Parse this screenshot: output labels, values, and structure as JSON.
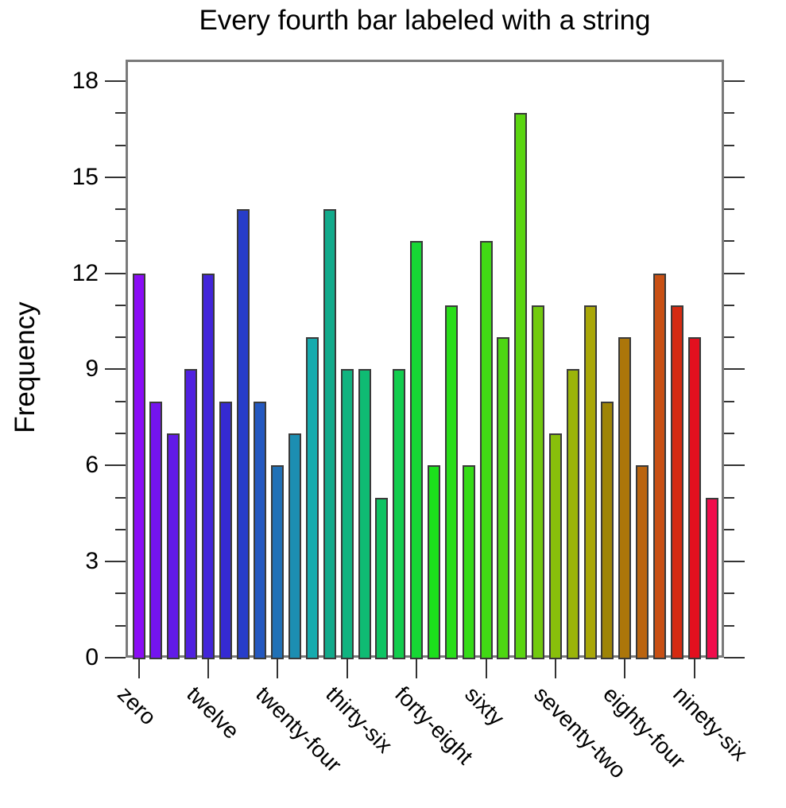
{
  "figure": {
    "background": "#ffffff"
  },
  "chart_data": {
    "type": "bar",
    "title": "Every fourth bar labeled with a string",
    "ylabel": "Frequency",
    "xlabel": "",
    "n_bars": 34,
    "values": [
      12,
      8,
      7,
      9,
      12,
      8,
      14,
      8,
      6,
      7,
      10,
      14,
      9,
      9,
      5,
      9,
      13,
      6,
      11,
      6,
      13,
      10,
      17,
      11,
      7,
      9,
      11,
      8,
      10,
      6,
      12,
      11,
      10,
      5
    ],
    "bar_colors": [
      "#8A0DF5",
      "#7414EE",
      "#611AE7",
      "#5020E0",
      "#4225D9",
      "#352AD2",
      "#273DC9",
      "#2458C0",
      "#2171B6",
      "#1C8EB2",
      "#17ABAE",
      "#12AA8B",
      "#11B380",
      "#0FBB73",
      "#0EC463",
      "#12CD4D",
      "#17D735",
      "#1CE01C",
      "#28DE19",
      "#35DC17",
      "#41D915",
      "#4DD712",
      "#5AD510",
      "#72CA0E",
      "#88BF0B",
      "#9BB409",
      "#A9A708",
      "#9E8406",
      "#AC760A",
      "#BA640F",
      "#C85014",
      "#D52B12",
      "#E3101F",
      "#F00D4C"
    ],
    "x_major_tick_labels": [
      "zero",
      "twelve",
      "twenty-four",
      "thirty-six",
      "forty-eight",
      "sixty",
      "seventy-two",
      "eighty-four",
      "ninety-six"
    ],
    "x_label_every_nth_bar": 4,
    "x_tick_label_rotation_deg": 45,
    "y_ticks_major": [
      0,
      3,
      6,
      9,
      12,
      15,
      18
    ],
    "y_minor_tick_step": 1,
    "ylim": [
      0,
      18.67
    ],
    "grid": "off",
    "legend": "none",
    "axis_box_color": "#7a7a7a",
    "tick_color": "#333333",
    "bar_edge_color": "#3a3a3a",
    "text_color": "#000000"
  }
}
